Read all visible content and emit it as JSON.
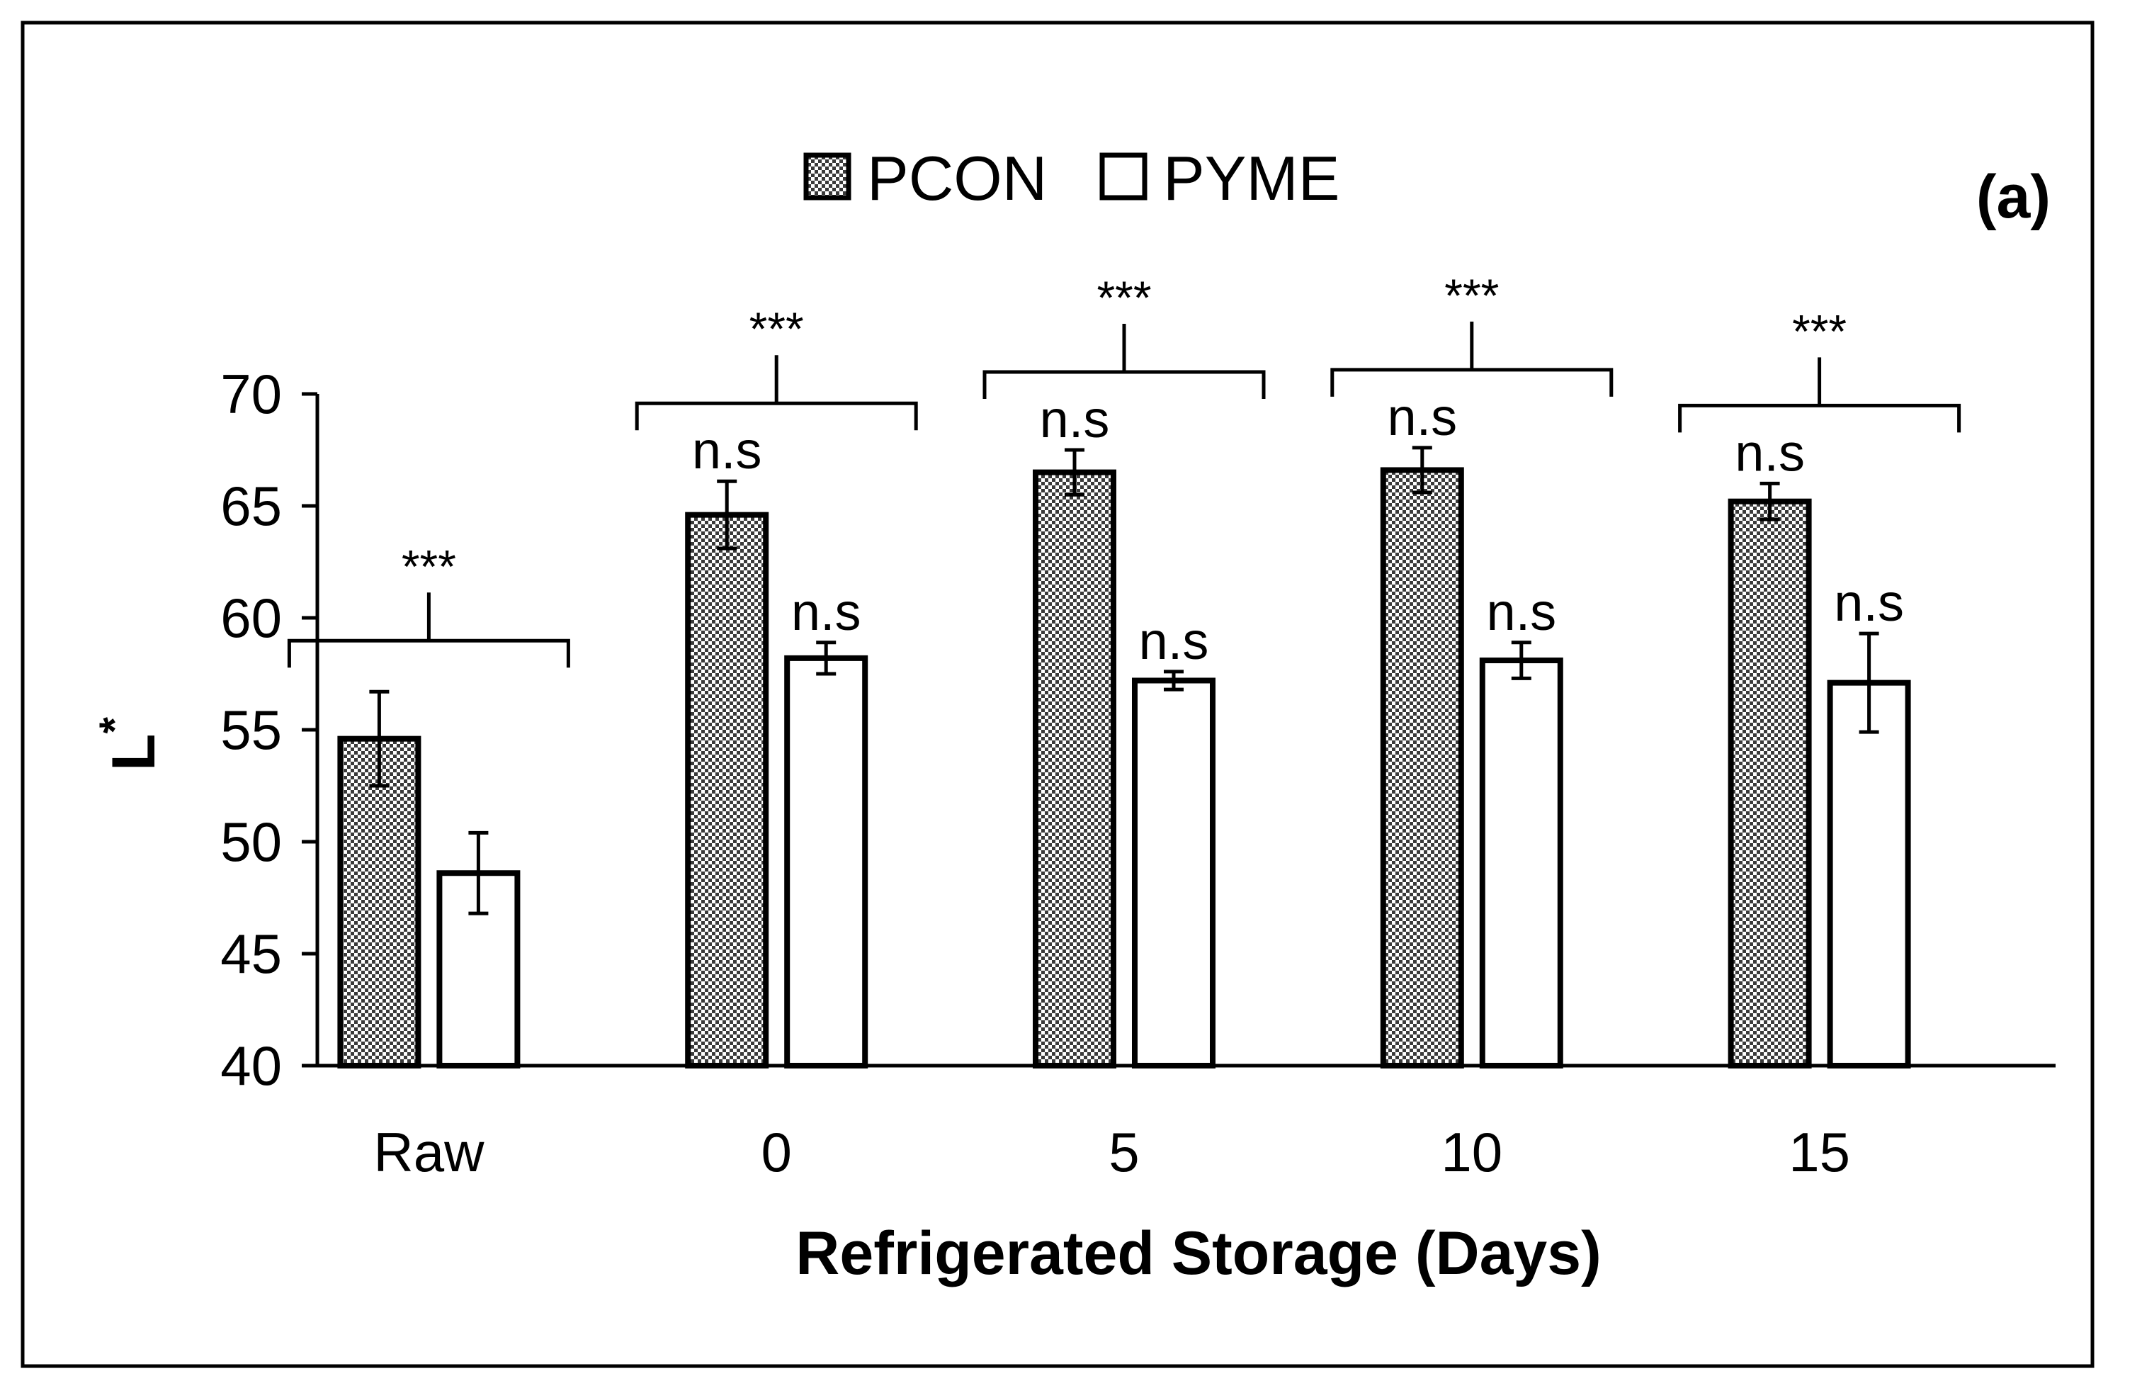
{
  "chart_data": {
    "type": "bar",
    "panel_label": "(a)",
    "title": "",
    "xlabel": "Refrigerated Storage (Days)",
    "ylabel": "L*",
    "ylabel_main": "L",
    "ylabel_sup": "*",
    "ylim": [
      40,
      70
    ],
    "yticks": [
      40,
      45,
      50,
      55,
      60,
      65,
      70
    ],
    "grid": false,
    "legend_position": "top-center",
    "categories": [
      "Raw",
      "0",
      "5",
      "10",
      "15"
    ],
    "series": [
      {
        "name": "PCON",
        "values": [
          54.6,
          64.6,
          66.5,
          66.6,
          65.2
        ],
        "errors": [
          2.1,
          1.5,
          1.0,
          1.0,
          0.8
        ],
        "annotations": [
          "",
          "n.s",
          "n.s",
          "n.s",
          "n.s"
        ],
        "fill": "#7f7f7f"
      },
      {
        "name": "PYME",
        "values": [
          48.6,
          58.2,
          57.2,
          58.1,
          57.1
        ],
        "errors": [
          1.8,
          0.7,
          0.4,
          0.8,
          2.2
        ],
        "annotations": [
          "",
          "n.s",
          "n.s",
          "n.s",
          "n.s"
        ],
        "fill": "#ffffff"
      }
    ],
    "group_annotations": [
      "***",
      "***",
      "***",
      "***",
      "***"
    ]
  }
}
